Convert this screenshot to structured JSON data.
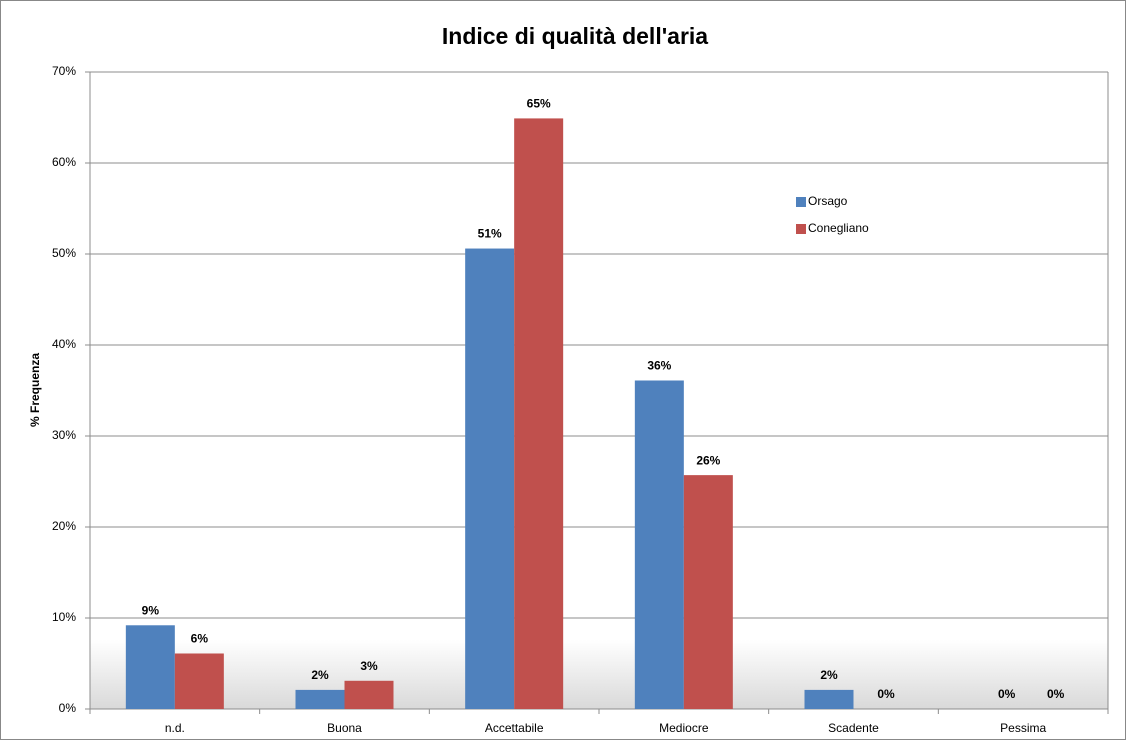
{
  "chart_data": {
    "type": "bar",
    "title": "Indice di qualità dell'aria",
    "y_label": "% Frequenza",
    "categories": [
      "n.d.",
      "Buona",
      "Accettabile",
      "Mediocre",
      "Scadente",
      "Pessima"
    ],
    "series": [
      {
        "name": "Orsago",
        "color": "#4f81bd",
        "values": [
          9.2,
          2.1,
          50.6,
          36.1,
          2.1,
          0
        ],
        "value_labels": [
          "9%",
          "2%",
          "51%",
          "36%",
          "2%",
          "0%"
        ]
      },
      {
        "name": "Conegliano",
        "color": "#c0504d",
        "values": [
          6.1,
          3.1,
          64.9,
          25.7,
          0,
          0
        ],
        "value_labels": [
          "6%",
          "3%",
          "65%",
          "26%",
          "0%",
          "0%"
        ]
      }
    ],
    "ylim": [
      0,
      70
    ],
    "yticks": [
      {
        "value": 0,
        "label": "0%"
      },
      {
        "value": 10,
        "label": "10%"
      },
      {
        "value": 20,
        "label": "20%"
      },
      {
        "value": 30,
        "label": "30%"
      },
      {
        "value": 40,
        "label": "40%"
      },
      {
        "value": 50,
        "label": "50%"
      },
      {
        "value": 60,
        "label": "60%"
      },
      {
        "value": 70,
        "label": "70%"
      }
    ],
    "grid": true
  }
}
